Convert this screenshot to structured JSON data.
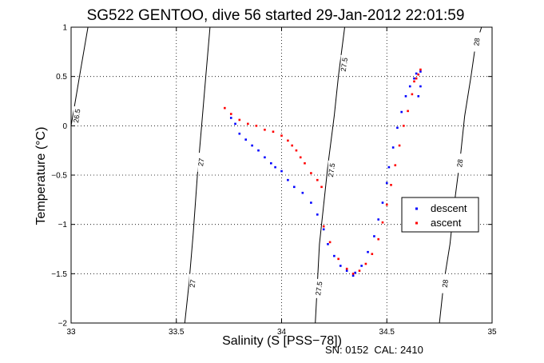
{
  "chart_data": {
    "type": "scatter",
    "title": "SG522 GENTOO, dive 56 started 29-Jan-2012 22:01:59",
    "xlabel": "Salinity (S [PSS−78])",
    "ylabel": "Temperature (°C)",
    "xlim": [
      33,
      35
    ],
    "ylim": [
      -2,
      1
    ],
    "xticks": [
      33,
      33.5,
      34,
      34.5,
      35
    ],
    "xtick_labels": [
      "33",
      "33.5",
      "34",
      "34.5",
      "35"
    ],
    "yticks": [
      -2,
      -1.5,
      -1,
      -0.5,
      0,
      0.5,
      1
    ],
    "ytick_labels": [
      "−2",
      "−1.5",
      "−1",
      "−0.5",
      "0",
      "0.5",
      "1"
    ],
    "grid": true,
    "legend_position": "right",
    "series": [
      {
        "name": "descent",
        "color": "#0000ff",
        "x": [
          33.76,
          33.78,
          33.8,
          33.83,
          33.86,
          33.89,
          33.92,
          33.95,
          33.97,
          34.0,
          34.03,
          34.06,
          34.1,
          34.14,
          34.17,
          34.2,
          34.22,
          34.25,
          34.28,
          34.31,
          34.34,
          34.35,
          34.38,
          34.41,
          34.44,
          34.46,
          34.48,
          34.5,
          34.51,
          34.53,
          34.55,
          34.57,
          34.59,
          34.61,
          34.63,
          34.64,
          34.66,
          34.66,
          34.65
        ],
        "y": [
          0.08,
          0.02,
          -0.08,
          -0.14,
          -0.2,
          -0.25,
          -0.32,
          -0.38,
          -0.42,
          -0.46,
          -0.55,
          -0.62,
          -0.68,
          -0.78,
          -0.9,
          -1.05,
          -1.2,
          -1.32,
          -1.42,
          -1.47,
          -1.52,
          -1.49,
          -1.42,
          -1.28,
          -1.12,
          -0.95,
          -0.78,
          -0.58,
          -0.42,
          -0.22,
          -0.02,
          0.14,
          0.3,
          0.4,
          0.48,
          0.53,
          0.55,
          0.4,
          0.3
        ]
      },
      {
        "name": "ascent",
        "color": "#ff0000",
        "x": [
          33.73,
          33.76,
          33.8,
          33.84,
          33.88,
          33.92,
          33.96,
          34.0,
          34.03,
          34.05,
          34.07,
          34.09,
          34.11,
          34.14,
          34.17,
          34.19,
          34.2,
          34.23,
          34.27,
          34.31,
          34.34,
          34.37,
          34.4,
          34.43,
          34.46,
          34.48,
          34.5,
          34.52,
          34.54,
          34.56,
          34.58,
          34.6,
          34.62,
          34.63,
          34.65,
          34.66,
          34.64
        ],
        "y": [
          0.18,
          0.12,
          0.06,
          0.02,
          0.0,
          -0.04,
          -0.06,
          -0.1,
          -0.15,
          -0.2,
          -0.25,
          -0.32,
          -0.38,
          -0.48,
          -0.55,
          -0.62,
          -1.02,
          -1.18,
          -1.35,
          -1.45,
          -1.5,
          -1.47,
          -1.4,
          -1.3,
          -1.15,
          -0.98,
          -0.8,
          -0.6,
          -0.4,
          -0.2,
          0.0,
          0.15,
          0.32,
          0.45,
          0.52,
          0.57,
          0.48
        ]
      }
    ],
    "contours": [
      {
        "label": "26.5",
        "x": [
          33.0,
          33.02,
          33.04,
          33.06,
          33.08
        ],
        "y": [
          0.0,
          0.25,
          0.5,
          0.75,
          1.0
        ],
        "label_at": [
          33.03,
          0.1
        ]
      },
      {
        "label": "27",
        "x": [
          33.54,
          33.56,
          33.58,
          33.6,
          33.62,
          33.64,
          33.66
        ],
        "y": [
          -2.0,
          -1.6,
          -1.1,
          -0.5,
          0.0,
          0.5,
          1.0
        ],
        "label_at_list": [
          [
            33.58,
            -1.6
          ],
          [
            33.62,
            -0.37
          ]
        ]
      },
      {
        "label": "27.5",
        "x": [
          34.16,
          34.17,
          34.18,
          34.2,
          34.22,
          34.25,
          34.27,
          34.3
        ],
        "y": [
          -2.0,
          -1.6,
          -1.2,
          -0.8,
          -0.4,
          0.1,
          0.5,
          1.0
        ],
        "label_at_list": [
          [
            34.18,
            -1.65
          ],
          [
            34.24,
            -0.45
          ],
          [
            34.3,
            0.62
          ]
        ]
      },
      {
        "label": "28",
        "x": [
          34.75,
          34.77,
          34.8,
          34.82,
          34.85,
          34.87,
          34.9,
          34.92,
          34.95
        ],
        "y": [
          -2.0,
          -1.6,
          -1.2,
          -0.8,
          -0.3,
          0.1,
          0.5,
          0.8,
          1.0
        ],
        "label_at_list": [
          [
            34.78,
            -1.6
          ],
          [
            34.85,
            -0.38
          ],
          [
            34.93,
            0.85
          ]
        ]
      }
    ],
    "legend": [
      {
        "label": "descent",
        "color": "#0000ff"
      },
      {
        "label": "ascent",
        "color": "#ff0000"
      }
    ]
  },
  "footer": {
    "sn_label": "SN: 0152  CAL: 2410"
  }
}
